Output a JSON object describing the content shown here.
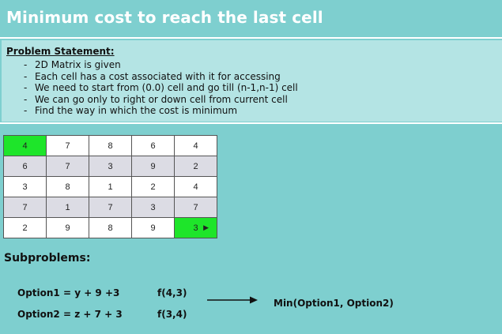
{
  "title": "Minimum cost to reach the last cell",
  "problem": {
    "heading": "Problem Statement:",
    "bullets": [
      "2D Matrix is given",
      "Each cell has a cost associated with it for accessing",
      "We need to start from (0.0) cell and go till (n-1,n-1) cell",
      "We can go only to right or down cell from current cell",
      "Find the way in which the cost is minimum"
    ]
  },
  "matrix": {
    "rows": [
      [
        "4",
        "7",
        "8",
        "6",
        "4"
      ],
      [
        "6",
        "7",
        "3",
        "9",
        "2"
      ],
      [
        "3",
        "8",
        "1",
        "2",
        "4"
      ],
      [
        "7",
        "1",
        "7",
        "3",
        "7"
      ],
      [
        "2",
        "9",
        "8",
        "9",
        "3"
      ]
    ],
    "highlight_color": "#1ee52a",
    "alt_row_color": "#dcdce4"
  },
  "subproblems": {
    "heading": "Subproblems:",
    "option1": "Option1 = y + 9 +3",
    "option1_call": "f(4,3)",
    "option2": "Option2 = z + 7 + 3",
    "option2_call": "f(3,4)",
    "result": "Min(Option1, Option2)"
  },
  "colors": {
    "background": "#7ecfcf",
    "panel": "#b4e4e4"
  }
}
